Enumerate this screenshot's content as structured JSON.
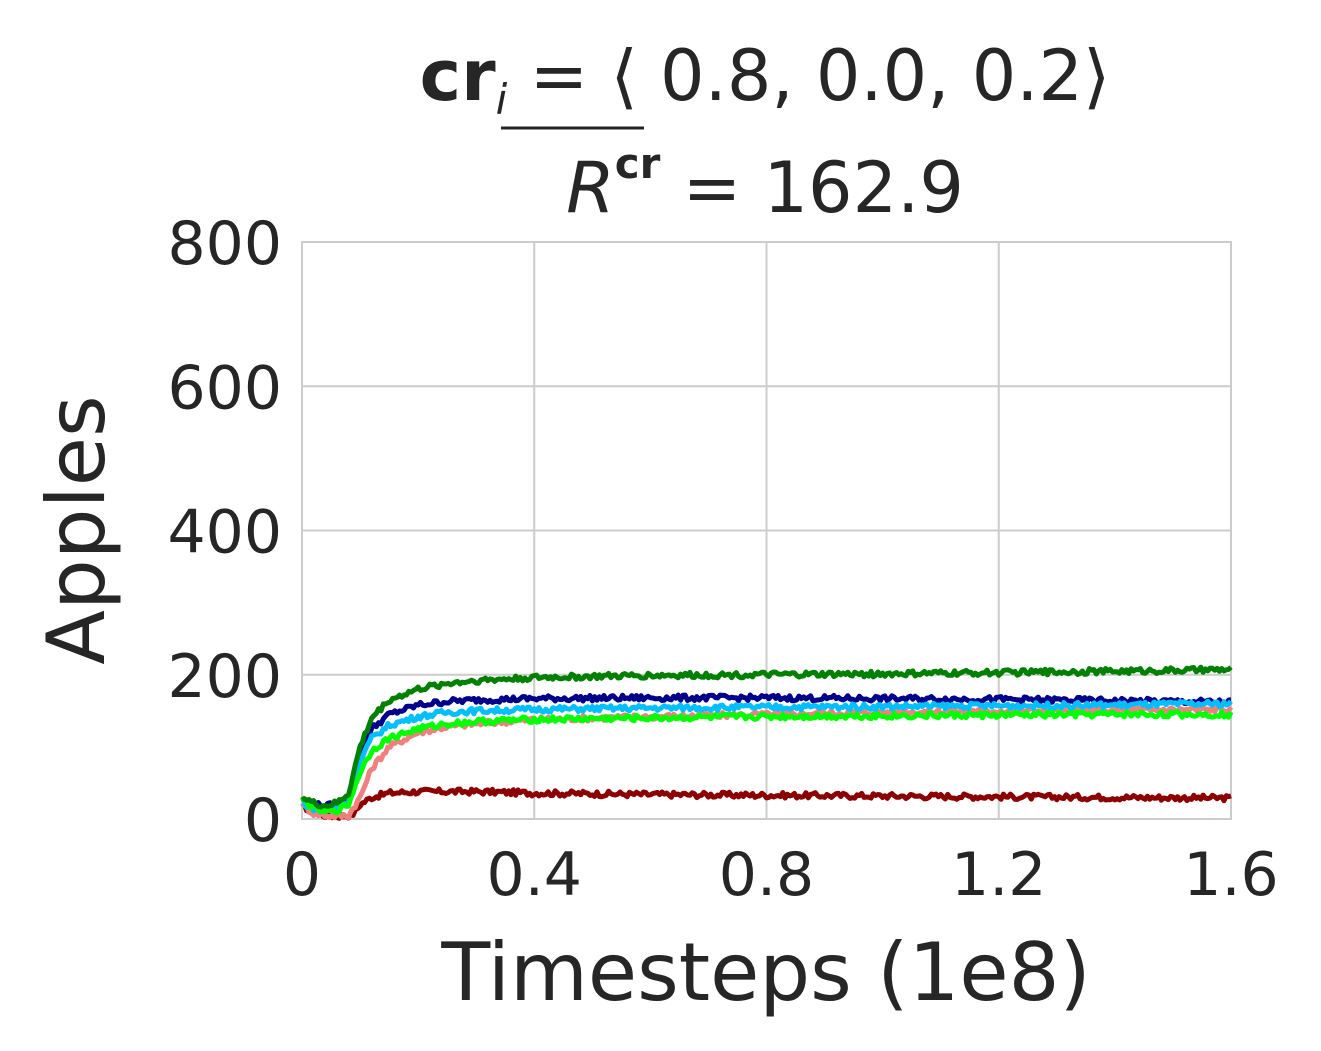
{
  "chart_data": {
    "type": "line",
    "title_line1": {
      "bold": "cr",
      "subscript": "i",
      "rest": " = ⟨ 0.8, 0.0, 0.2⟩"
    },
    "title_line2": {
      "symbol": "R",
      "superscript": "cr",
      "rest": " = 162.9"
    },
    "xlabel": "Timesteps (1e8)",
    "ylabel": "Apples",
    "xlim": [
      0,
      1.6
    ],
    "ylim": [
      0,
      800
    ],
    "xticks": [
      0,
      0.4,
      0.8,
      1.2,
      1.6
    ],
    "xtick_labels": [
      "0",
      "0.4",
      "0.8",
      "1.2",
      "1.6"
    ],
    "yticks": [
      0,
      200,
      400,
      600,
      800
    ],
    "ytick_labels": [
      "0",
      "200",
      "400",
      "600",
      "800"
    ],
    "grid": true,
    "series": [
      {
        "color": "#8B0000",
        "x": [
          0,
          0.02,
          0.04,
          0.06,
          0.08,
          0.09,
          0.1,
          0.12,
          0.15,
          0.2,
          0.3,
          0.4,
          0.6,
          0.8,
          1.0,
          1.2,
          1.4,
          1.6
        ],
        "y": [
          18,
          10,
          5,
          4,
          5,
          8,
          20,
          30,
          36,
          38,
          38,
          36,
          34,
          33,
          32,
          31,
          30,
          29
        ]
      },
      {
        "color": "#F08080",
        "x": [
          0,
          0.02,
          0.04,
          0.06,
          0.08,
          0.1,
          0.12,
          0.15,
          0.2,
          0.25,
          0.3,
          0.4,
          0.6,
          0.8,
          1.0,
          1.2,
          1.4,
          1.6
        ],
        "y": [
          20,
          8,
          5,
          4,
          5,
          30,
          70,
          100,
          120,
          128,
          132,
          138,
          142,
          145,
          148,
          150,
          151,
          152
        ]
      },
      {
        "color": "#00008B",
        "x": [
          0,
          0.02,
          0.04,
          0.06,
          0.08,
          0.1,
          0.12,
          0.15,
          0.2,
          0.25,
          0.3,
          0.4,
          0.6,
          0.8,
          1.0,
          1.2,
          1.4,
          1.6
        ],
        "y": [
          25,
          20,
          18,
          20,
          30,
          90,
          125,
          145,
          158,
          163,
          165,
          167,
          168,
          168,
          167,
          166,
          164,
          162
        ]
      },
      {
        "color": "#00BFFF",
        "x": [
          0,
          0.02,
          0.04,
          0.06,
          0.08,
          0.1,
          0.12,
          0.15,
          0.2,
          0.25,
          0.3,
          0.4,
          0.6,
          0.8,
          1.0,
          1.2,
          1.4,
          1.6
        ],
        "y": [
          22,
          15,
          12,
          15,
          25,
          80,
          112,
          130,
          142,
          148,
          150,
          152,
          154,
          155,
          156,
          157,
          158,
          160
        ]
      },
      {
        "color": "#00FF00",
        "x": [
          0,
          0.02,
          0.04,
          0.06,
          0.08,
          0.1,
          0.12,
          0.15,
          0.2,
          0.25,
          0.3,
          0.4,
          0.6,
          0.8,
          1.0,
          1.2,
          1.4,
          1.6
        ],
        "y": [
          28,
          15,
          10,
          12,
          20,
          65,
          95,
          112,
          125,
          132,
          135,
          138,
          140,
          142,
          143,
          144,
          145,
          145
        ]
      },
      {
        "color": "#008000",
        "x": [
          0,
          0.02,
          0.04,
          0.06,
          0.08,
          0.1,
          0.12,
          0.15,
          0.2,
          0.25,
          0.3,
          0.4,
          0.6,
          0.8,
          1.0,
          1.2,
          1.4,
          1.6
        ],
        "y": [
          30,
          22,
          18,
          22,
          35,
          100,
          140,
          165,
          180,
          188,
          192,
          196,
          199,
          200,
          201,
          203,
          205,
          207
        ]
      }
    ]
  }
}
